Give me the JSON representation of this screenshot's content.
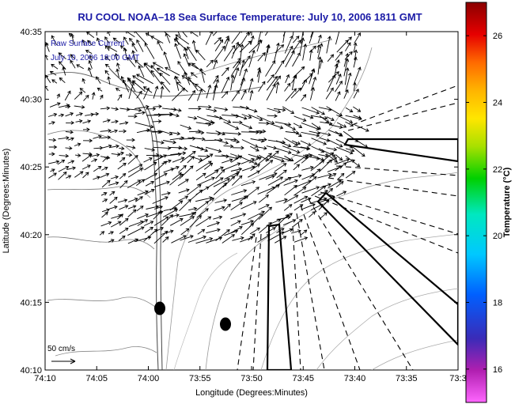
{
  "title": "RU COOL  NOAA–18  Sea Surface Temperature:  July 10, 2006 1811 GMT",
  "overlay": {
    "line1": "Raw Surface Current",
    "line2": "July 10, 2006 18:00 GMT",
    "color": "#1a1aa6"
  },
  "scale": {
    "label": "50 cm/s"
  },
  "axes": {
    "xlabel": "Longitude (Degrees:Minutes)",
    "ylabel": "Latitude (Degrees:Minutes)",
    "xticks": [
      "74:10",
      "74:05",
      "74:00",
      "73:55",
      "73:50",
      "73:45",
      "73:40",
      "73:35",
      "73:3"
    ],
    "yticks": [
      "40:35",
      "40:30",
      "40:25",
      "40:20",
      "40:15",
      "40:10"
    ]
  },
  "colorbar": {
    "label": "Temperature (°C)",
    "ticks": [
      "26",
      "24",
      "22",
      "20",
      "18",
      "16"
    ],
    "range": [
      15,
      27
    ]
  },
  "markers": {
    "count": 2
  }
}
